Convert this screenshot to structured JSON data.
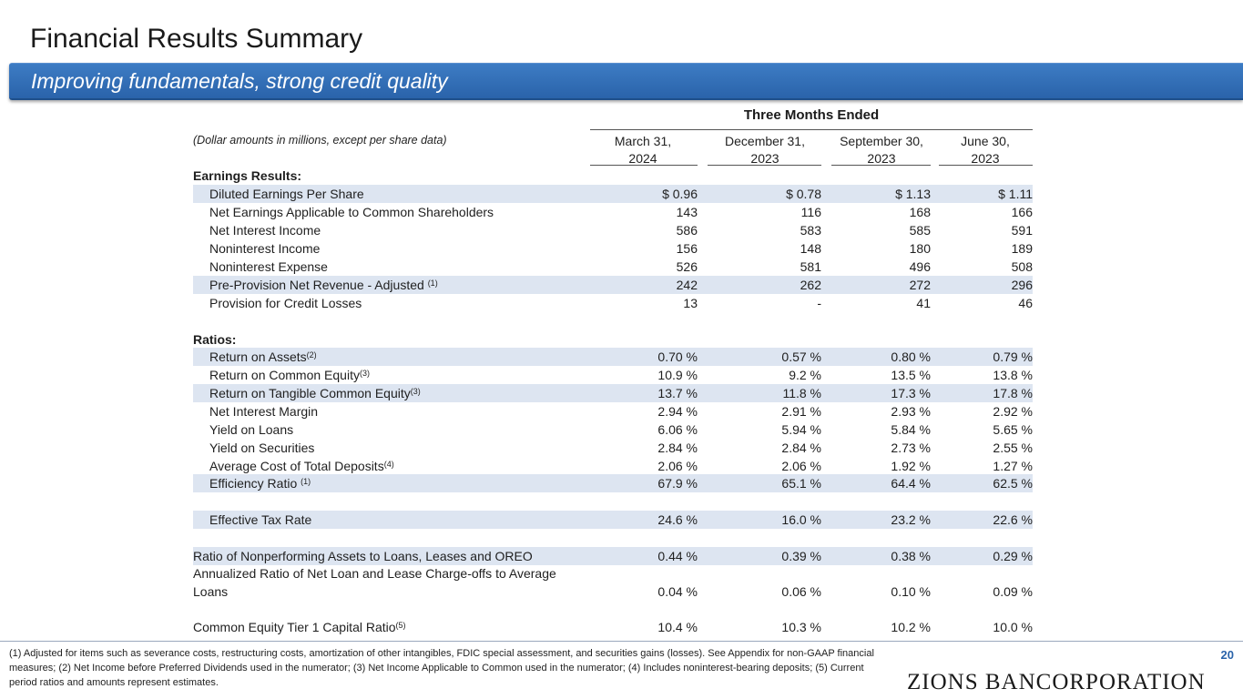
{
  "page": {
    "title": "Financial Results Summary",
    "subtitle": "Improving fundamentals, strong credit quality",
    "page_number": "20",
    "logo_text": "ZIONS BANCORPORATION"
  },
  "table": {
    "period_header": "Three Months Ended",
    "note": "(Dollar amounts in millions, except per share data)",
    "columns": [
      {
        "line1": "March 31,",
        "line2": "2024"
      },
      {
        "line1": "December 31,",
        "line2": "2023"
      },
      {
        "line1": "September 30,",
        "line2": "2023"
      },
      {
        "line1": "June 30,",
        "line2": "2023"
      }
    ],
    "earnings_header": "Earnings Results:",
    "ratios_header": "Ratios:",
    "rows": [
      {
        "label": "Diluted Earnings Per Share",
        "sup": "",
        "values": [
          "$ 0.96",
          "$ 0.78",
          "$ 1.13",
          "$ 1.11"
        ]
      },
      {
        "label": "Net Earnings Applicable to Common Shareholders",
        "sup": "",
        "values": [
          "143",
          "116",
          "168",
          "166"
        ]
      },
      {
        "label": "Net Interest Income",
        "sup": "",
        "values": [
          "586",
          "583",
          "585",
          "591"
        ]
      },
      {
        "label": "Noninterest Income",
        "sup": "",
        "values": [
          "156",
          "148",
          "180",
          "189"
        ]
      },
      {
        "label": "Noninterest Expense",
        "sup": "",
        "values": [
          "526",
          "581",
          "496",
          "508"
        ]
      },
      {
        "label": "Pre-Provision Net Revenue - Adjusted ",
        "sup": "(1)",
        "values": [
          "242",
          "262",
          "272",
          "296"
        ]
      },
      {
        "label": "Provision for Credit Losses",
        "sup": "",
        "values": [
          "13",
          "-",
          "41",
          "46"
        ]
      },
      {
        "label": "Return on Assets",
        "sup": "(2)",
        "values": [
          "0.70 %",
          "0.57 %",
          "0.80 %",
          "0.79 %"
        ]
      },
      {
        "label": "Return on Common Equity",
        "sup": "(3)",
        "values": [
          "10.9 %",
          "9.2 %",
          "13.5 %",
          "13.8 %"
        ]
      },
      {
        "label": "Return on Tangible Common Equity",
        "sup": "(3)",
        "values": [
          "13.7 %",
          "11.8 %",
          "17.3 %",
          "17.8 %"
        ]
      },
      {
        "label": "Net Interest Margin",
        "sup": "",
        "values": [
          "2.94 %",
          "2.91 %",
          "2.93 %",
          "2.92 %"
        ]
      },
      {
        "label": "Yield on Loans",
        "sup": "",
        "values": [
          "6.06 %",
          "5.94 %",
          "5.84 %",
          "5.65 %"
        ]
      },
      {
        "label": "Yield on Securities",
        "sup": "",
        "values": [
          "2.84 %",
          "2.84 %",
          "2.73 %",
          "2.55 %"
        ]
      },
      {
        "label": "Average Cost of Total Deposits",
        "sup": "(4)",
        "values": [
          "2.06 %",
          "2.06 %",
          "1.92 %",
          "1.27 %"
        ]
      },
      {
        "label": "Efficiency Ratio ",
        "sup": "(1)",
        "values": [
          "67.9 %",
          "65.1 %",
          "64.4 %",
          "62.5 %"
        ]
      },
      {
        "label": "Effective Tax Rate",
        "sup": "",
        "values": [
          "24.6 %",
          "16.0 %",
          "23.2 %",
          "22.6 %"
        ]
      },
      {
        "label": "Ratio of Nonperforming Assets to Loans, Leases and OREO",
        "sup": "",
        "values": [
          "0.44 %",
          "0.39 %",
          "0.38 %",
          "0.29 %"
        ]
      },
      {
        "label": "Annualized Ratio of Net Loan and Lease Charge-offs to Average Loans",
        "sup": "",
        "values": [
          "0.04 %",
          "0.06 %",
          "0.10 %",
          "0.09 %"
        ]
      },
      {
        "label": "Common Equity Tier 1 Capital Ratio",
        "sup": "(5)",
        "values": [
          "10.4 %",
          "10.3 %",
          "10.2 %",
          "10.0 %"
        ]
      }
    ]
  },
  "footnote": "(1) Adjusted for items such as severance costs, restructuring costs, amortization of other intangibles, FDIC special assessment, and securities gains (losses). See Appendix for non-GAAP financial measures; (2) Net Income before Preferred Dividends used in the numerator; (3) Net Income Applicable to Common used in the numerator; (4) Includes noninterest-bearing deposits; (5) Current period ratios and amounts represent estimates."
}
